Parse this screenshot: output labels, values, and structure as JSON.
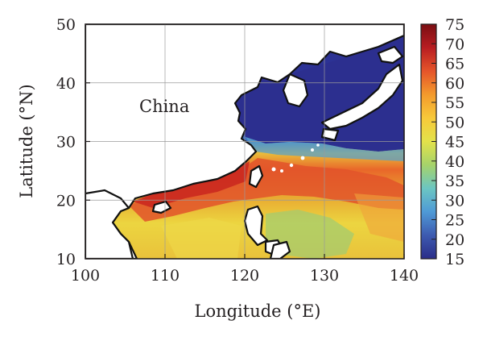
{
  "map": {
    "x_axis_label": "Longitude (°E)",
    "y_axis_label": "Latitude (°N)",
    "x_ticks": [
      "100",
      "110",
      "120",
      "130",
      "140"
    ],
    "y_ticks": [
      "10",
      "20",
      "30",
      "40",
      "50"
    ],
    "place_label": "China",
    "x_range": [
      100,
      140
    ],
    "y_range": [
      10,
      50
    ],
    "gridlines": true
  },
  "colorbar": {
    "ticks": [
      "75",
      "70",
      "65",
      "60",
      "55",
      "50",
      "45",
      "40",
      "35",
      "30",
      "25",
      "20",
      "15"
    ],
    "range": [
      15,
      75
    ],
    "colors": [
      "#2a2d88",
      "#3d5ab0",
      "#4f9ad6",
      "#6cc6c2",
      "#a6d36a",
      "#e3e24a",
      "#f7c93a",
      "#f39a2c",
      "#e5542a",
      "#b81d22",
      "#7a0e12"
    ]
  },
  "colors": {
    "land": "#ffffff",
    "coastline": "#111111",
    "low_value": "#2a2d88",
    "high_value": "#c8281e"
  }
}
